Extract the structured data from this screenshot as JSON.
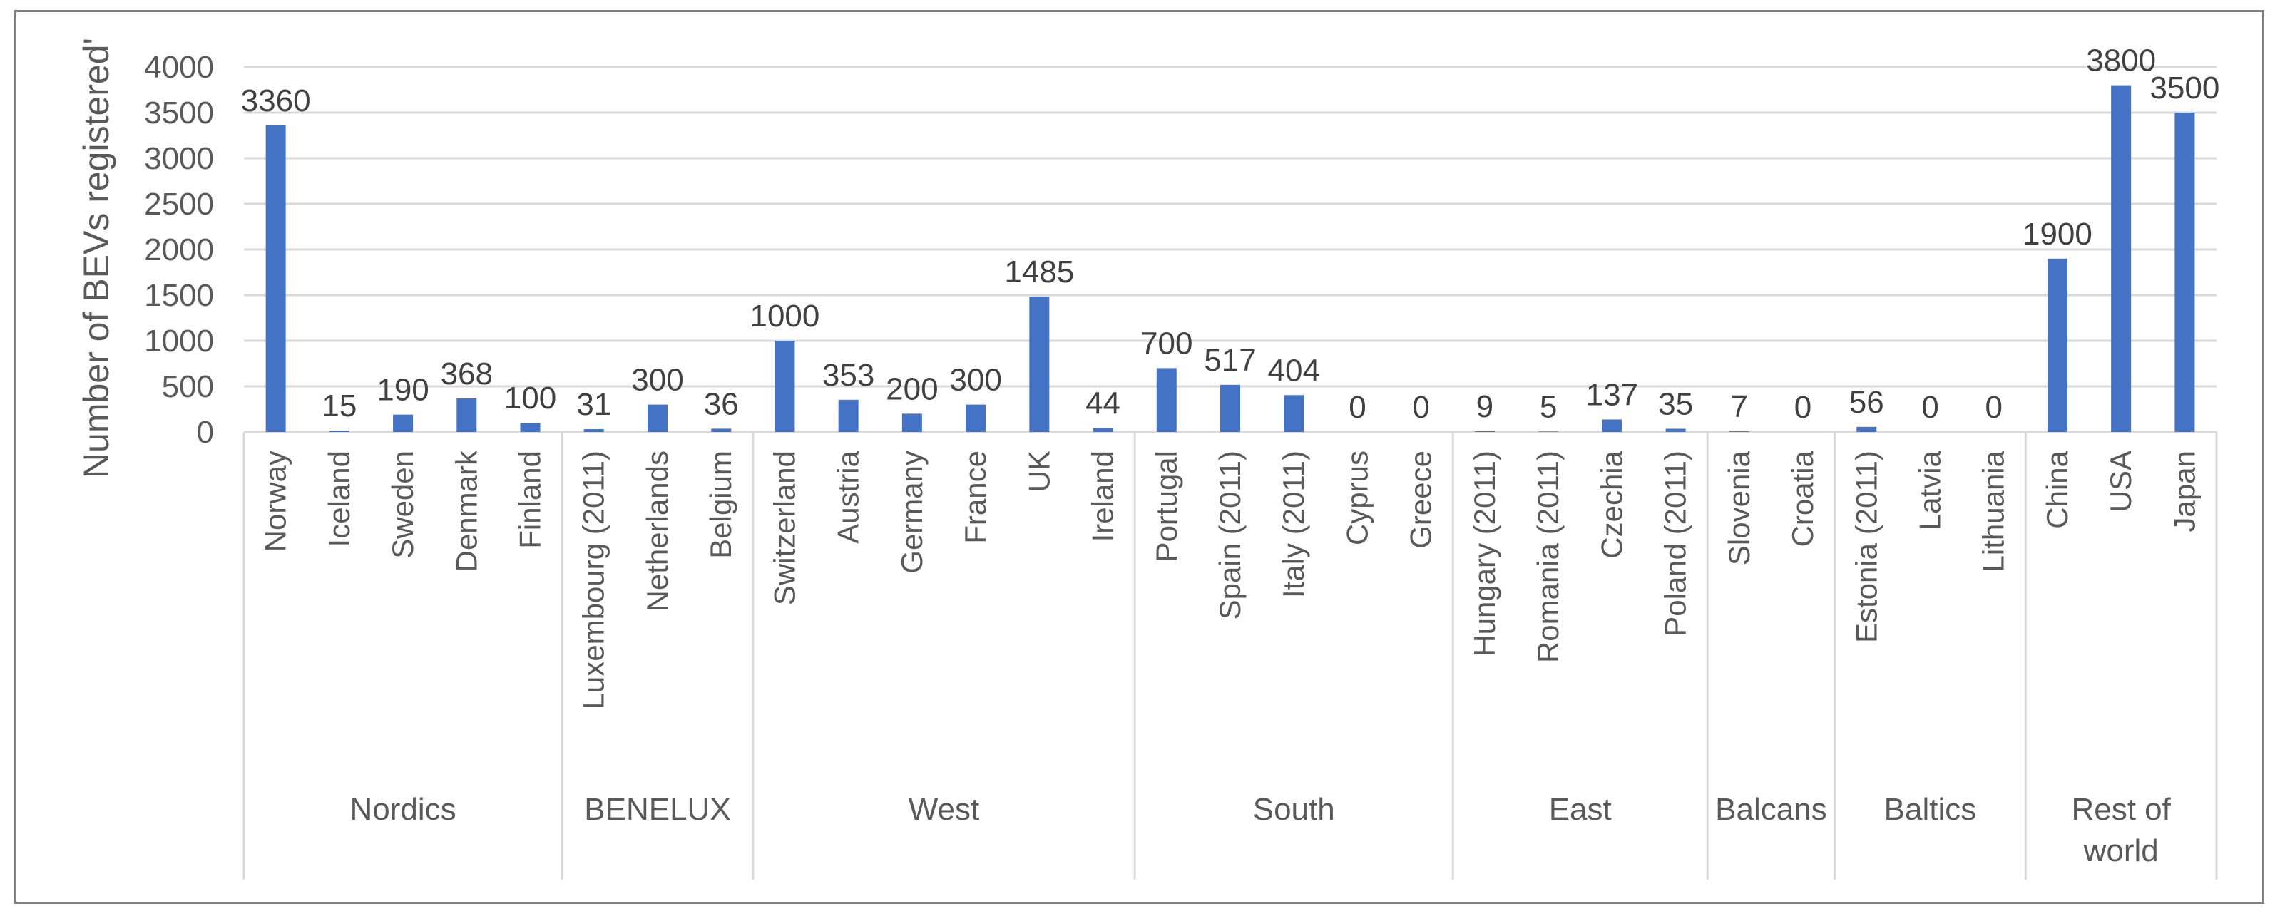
{
  "chart_data": {
    "type": "bar",
    "title": "",
    "ylabel": "Number of BEVs registered'",
    "xlabel": "",
    "ylim": [
      0,
      4000
    ],
    "yticks": [
      0,
      500,
      1000,
      1500,
      2000,
      2500,
      3000,
      3500,
      4000
    ],
    "grid": true,
    "bar_color": "#4472C4",
    "categories": [
      "Norway",
      "Iceland",
      "Sweden",
      "Denmark",
      "Finland",
      "Luxembourg (2011)",
      "Netherlands",
      "Belgium",
      "Switzerland",
      "Austria",
      "Germany",
      "France",
      "UK",
      "Ireland",
      "Portugal",
      "Spain (2011)",
      "Italy (2011)",
      "Cyprus",
      "Greece",
      "Hungary (2011)",
      "Romania (2011)",
      "Czechia",
      "Poland (2011)",
      "Slovenia",
      "Croatia",
      "Estonia (2011)",
      "Latvia",
      "Lithuania",
      "China",
      "USA",
      "Japan"
    ],
    "values": [
      3360,
      15,
      190,
      368,
      100,
      31,
      300,
      36,
      1000,
      353,
      200,
      300,
      1485,
      44,
      700,
      517,
      404,
      0,
      0,
      9,
      5,
      137,
      35,
      7,
      0,
      56,
      0,
      0,
      1900,
      3800,
      3500
    ],
    "groups": [
      {
        "name": "Nordics",
        "size": 5
      },
      {
        "name": "BENELUX",
        "size": 3
      },
      {
        "name": "West",
        "size": 6
      },
      {
        "name": "South",
        "size": 5
      },
      {
        "name": "East",
        "size": 4
      },
      {
        "name": "Balcans",
        "size": 2
      },
      {
        "name": "Baltics",
        "size": 3
      },
      {
        "name": "Rest of world",
        "size": 3
      }
    ]
  }
}
